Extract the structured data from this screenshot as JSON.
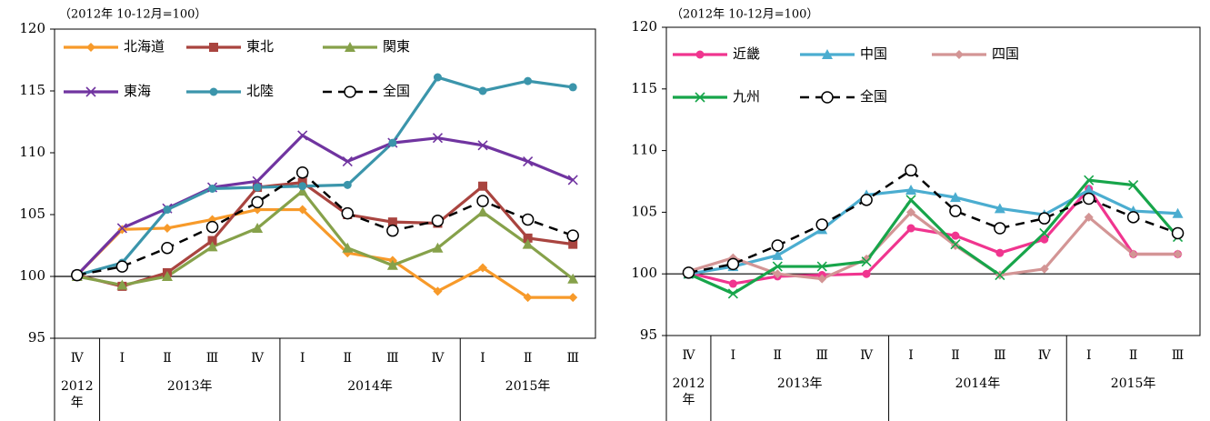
{
  "chart_data": [
    {
      "type": "line",
      "subtitle": "（2012年 10-12月=100）",
      "categories": [
        "Ⅳ",
        "Ⅰ",
        "Ⅱ",
        "Ⅲ",
        "Ⅳ",
        "Ⅰ",
        "Ⅱ",
        "Ⅲ",
        "Ⅳ",
        "Ⅰ",
        "Ⅱ",
        "Ⅲ"
      ],
      "groups": [
        {
          "label": "2012年",
          "count": 1
        },
        {
          "label": "2013年",
          "count": 4
        },
        {
          "label": "2014年",
          "count": 4
        },
        {
          "label": "2015年",
          "count": 3
        }
      ],
      "ylim": [
        95,
        120
      ],
      "yticks": [
        95,
        100,
        105,
        110,
        115,
        120
      ],
      "reference_line": 100,
      "series": [
        {
          "name": "北海道",
          "color": "#f79a2a",
          "marker": "diamond",
          "values": [
            100.1,
            103.8,
            103.9,
            104.6,
            105.4,
            105.4,
            101.9,
            101.3,
            98.8,
            100.7,
            98.3,
            98.3
          ]
        },
        {
          "name": "東北",
          "color": "#a9443f",
          "marker": "square",
          "values": [
            100.1,
            99.2,
            100.3,
            102.9,
            107.2,
            107.6,
            105.0,
            104.4,
            104.3,
            107.3,
            103.1,
            102.6
          ]
        },
        {
          "name": "関東",
          "color": "#86a14a",
          "marker": "triangle",
          "values": [
            100.0,
            99.3,
            100.0,
            102.4,
            103.9,
            106.9,
            102.3,
            100.9,
            102.3,
            105.2,
            102.6,
            99.8
          ]
        },
        {
          "name": "東海",
          "color": "#7034a0",
          "marker": "x",
          "values": [
            100.1,
            103.9,
            105.5,
            107.2,
            107.7,
            111.4,
            109.3,
            110.8,
            111.2,
            110.6,
            109.3,
            107.8
          ]
        },
        {
          "name": "北陸",
          "color": "#3b95ab",
          "marker": "circle",
          "values": [
            100.1,
            101.1,
            105.4,
            107.1,
            107.2,
            107.3,
            107.4,
            110.8,
            116.1,
            115.0,
            115.8,
            115.3
          ]
        },
        {
          "name": "全国",
          "color": "#000000",
          "marker": "open-circle",
          "dashed": true,
          "values": [
            100.1,
            100.8,
            102.3,
            104.0,
            106.0,
            108.4,
            105.1,
            103.7,
            104.5,
            106.1,
            104.6,
            103.3
          ]
        }
      ]
    },
    {
      "type": "line",
      "subtitle": "（2012年 10-12月=100）",
      "categories": [
        "Ⅳ",
        "Ⅰ",
        "Ⅱ",
        "Ⅲ",
        "Ⅳ",
        "Ⅰ",
        "Ⅱ",
        "Ⅲ",
        "Ⅳ",
        "Ⅰ",
        "Ⅱ",
        "Ⅲ"
      ],
      "groups": [
        {
          "label": "2012年",
          "count": 1
        },
        {
          "label": "2013年",
          "count": 4
        },
        {
          "label": "2014年",
          "count": 4
        },
        {
          "label": "2015年",
          "count": 3
        }
      ],
      "ylim": [
        95,
        120
      ],
      "yticks": [
        95,
        100,
        105,
        110,
        115,
        120
      ],
      "reference_line": 100,
      "series": [
        {
          "name": "近畿",
          "color": "#f0358f",
          "marker": "circle",
          "values": [
            100.1,
            99.2,
            99.8,
            99.9,
            100.0,
            103.7,
            103.1,
            101.7,
            102.8,
            106.9,
            101.6,
            101.6
          ]
        },
        {
          "name": "中国",
          "color": "#4badd0",
          "marker": "triangle",
          "values": [
            100.0,
            100.6,
            101.5,
            103.6,
            106.4,
            106.8,
            106.2,
            105.3,
            104.8,
            106.8,
            105.1,
            104.9
          ]
        },
        {
          "name": "四国",
          "color": "#d39595",
          "marker": "diamond",
          "values": [
            100.2,
            101.3,
            100.0,
            99.6,
            101.2,
            105.0,
            102.3,
            99.9,
            100.4,
            104.6,
            101.6,
            101.6
          ]
        },
        {
          "name": "九州",
          "color": "#17a54a",
          "marker": "x",
          "values": [
            100.0,
            98.4,
            100.6,
            100.6,
            101.0,
            106.0,
            102.4,
            99.9,
            103.3,
            107.6,
            107.2,
            103.0
          ]
        },
        {
          "name": "全国",
          "color": "#000000",
          "marker": "open-circle",
          "dashed": true,
          "values": [
            100.1,
            100.8,
            102.3,
            104.0,
            106.0,
            108.4,
            105.1,
            103.7,
            104.5,
            106.1,
            104.6,
            103.3
          ]
        }
      ]
    }
  ]
}
